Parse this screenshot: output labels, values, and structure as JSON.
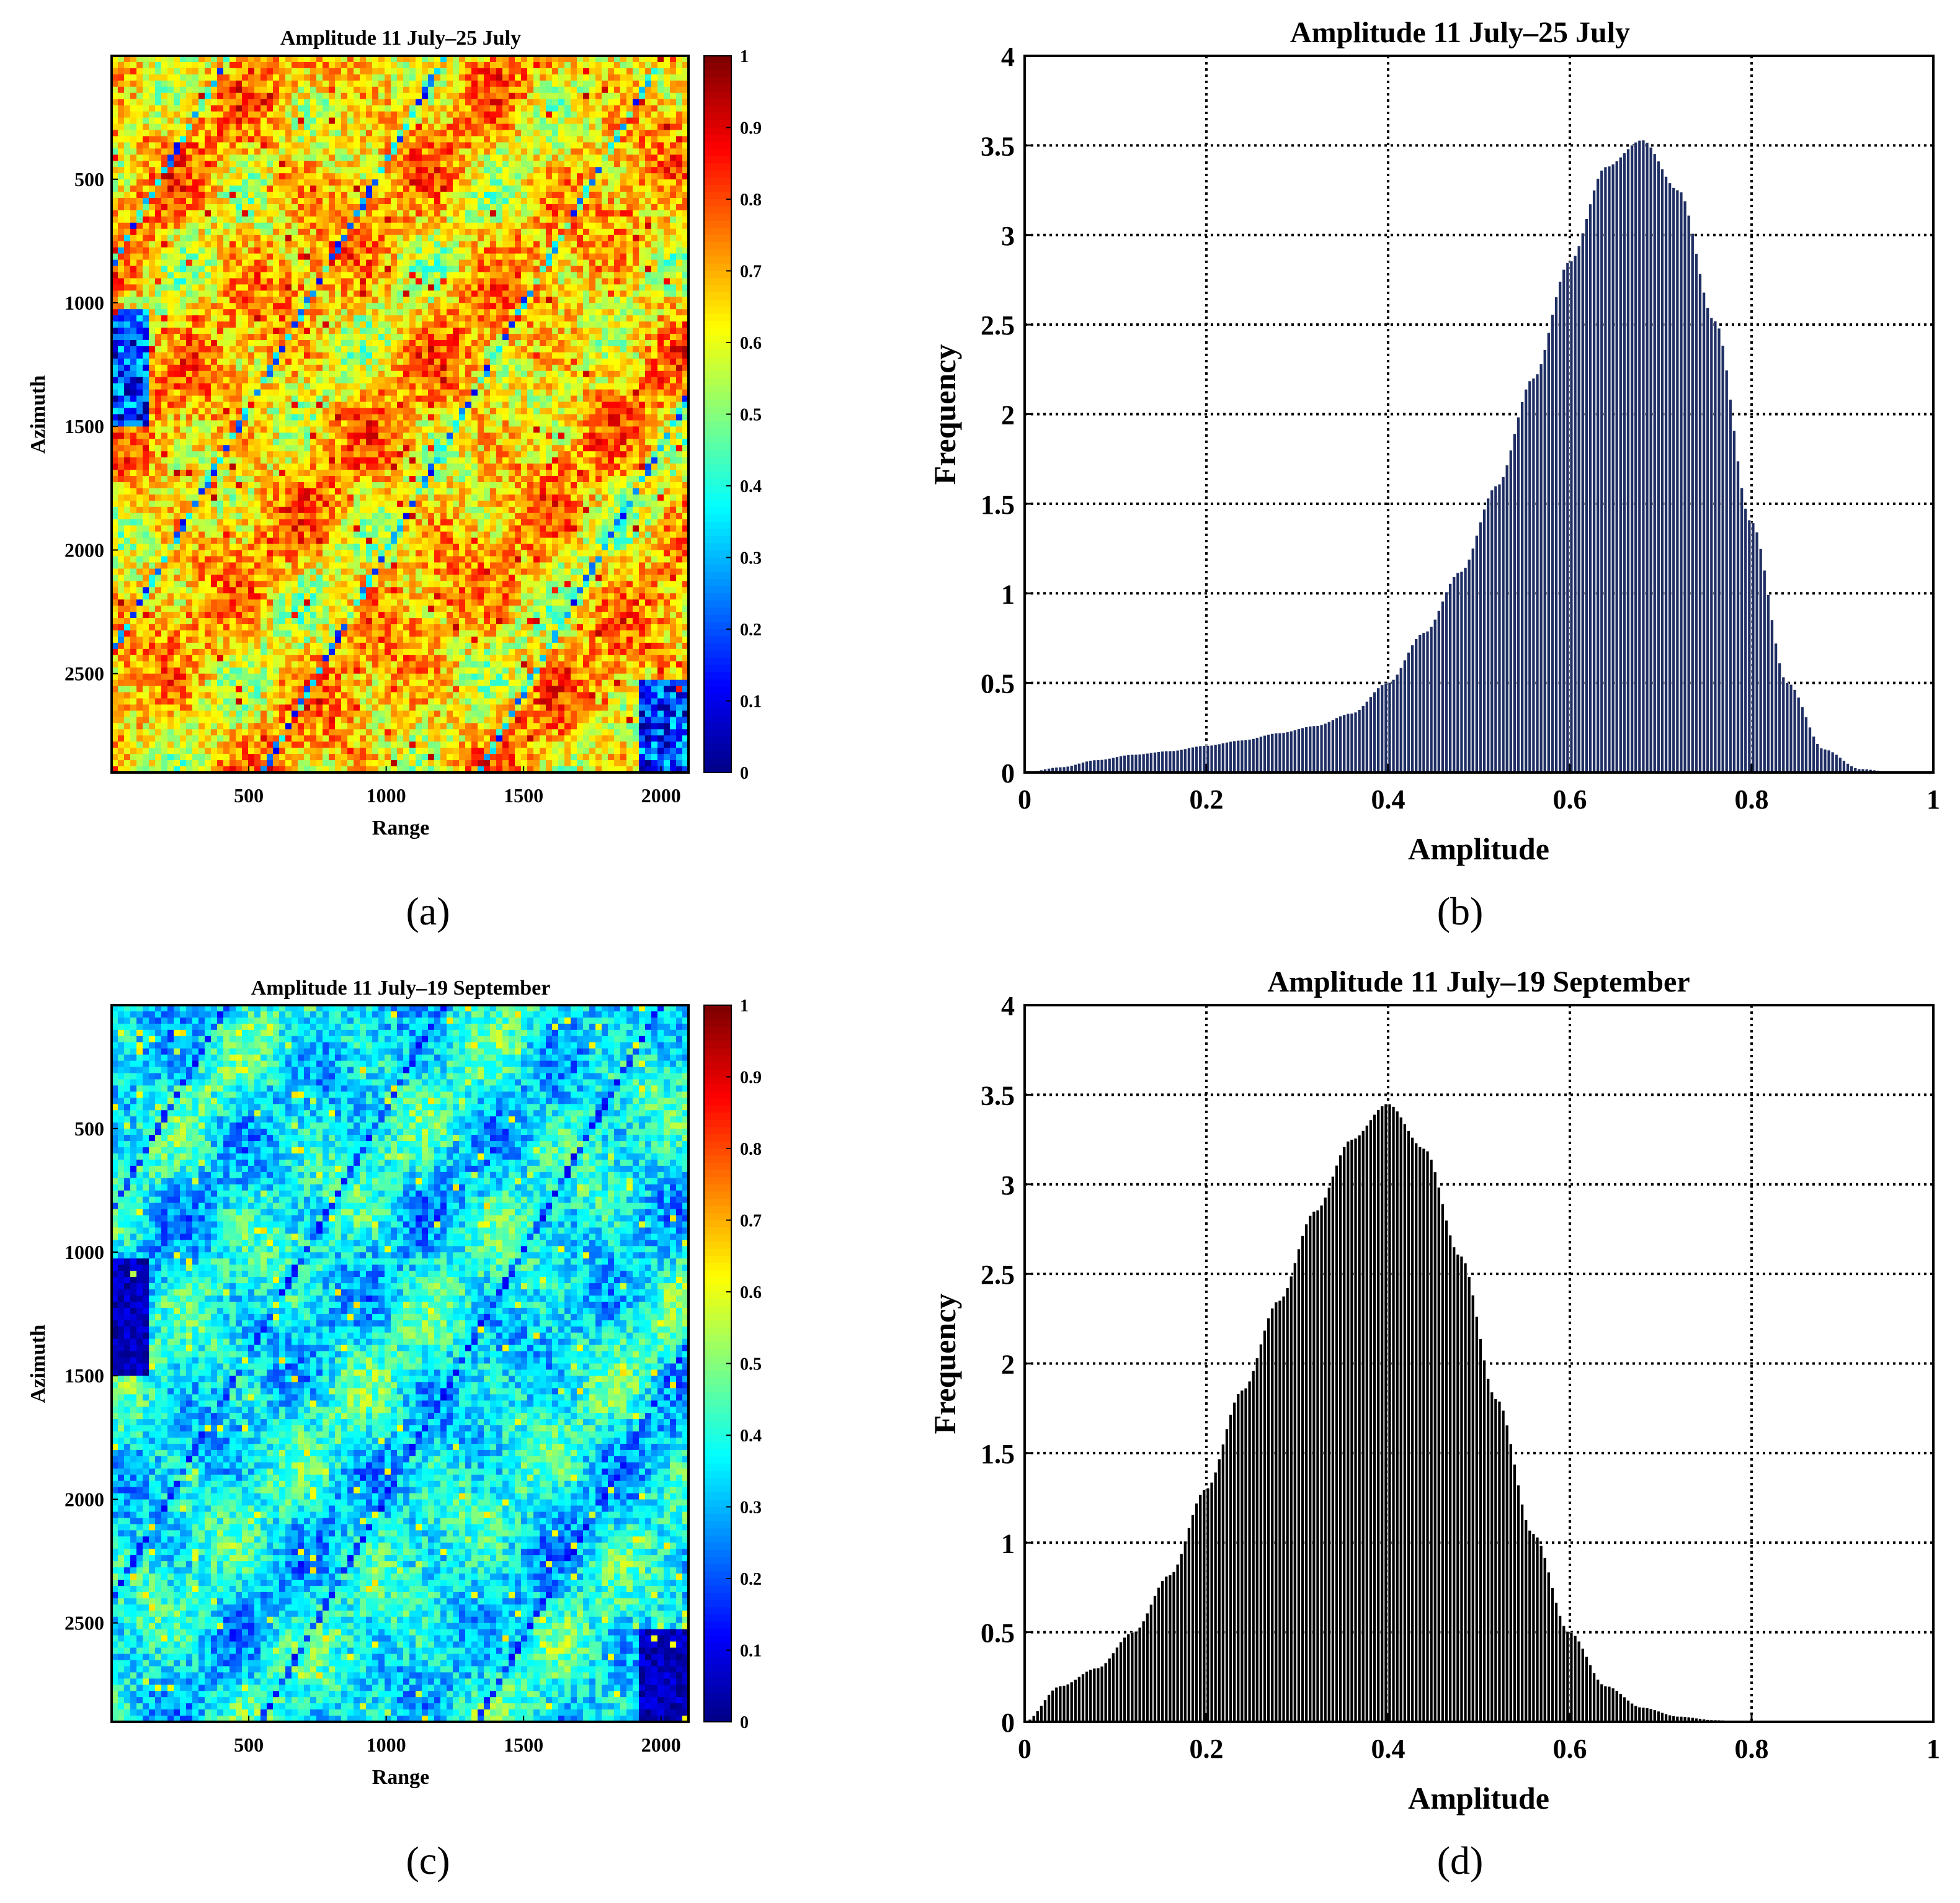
{
  "chart_data": [
    {
      "id": "a",
      "type": "heatmap",
      "panel_label": "(a)",
      "title": "Amplitude 11 July–25 July",
      "xlabel": "Range",
      "ylabel": "Azimuth",
      "xlim": [
        1,
        2100
      ],
      "ylim": [
        1,
        2900
      ],
      "xticks": [
        500,
        1000,
        1500,
        2000
      ],
      "yticks": [
        500,
        1000,
        1500,
        2000,
        2500
      ],
      "colorbar": {
        "colormap": "jet",
        "min": 0,
        "max": 1,
        "ticks": [
          "0",
          "0.1",
          "0.2",
          "0.3",
          "0.4",
          "0.5",
          "0.6",
          "0.7",
          "0.8",
          "0.9",
          "1"
        ]
      },
      "field": {
        "mean": 0.67,
        "spread": 0.17,
        "seed": 11,
        "low_patch": [
          0.0,
          0.38
        ],
        "high_patch": [
          0.82,
          0.95
        ]
      }
    },
    {
      "id": "b",
      "type": "bar",
      "panel_label": "(b)",
      "title": "Amplitude 11 July–25 July",
      "xlabel": "Amplitude",
      "ylabel": "Frequency",
      "xlim": [
        0,
        1
      ],
      "ylim": [
        0,
        4
      ],
      "grid": true,
      "xticks": [
        "0",
        "0.2",
        "0.4",
        "0.6",
        "0.8",
        "1"
      ],
      "yticks": [
        "0",
        "0.5",
        "1",
        "1.5",
        "2",
        "2.5",
        "3",
        "3.5",
        "4"
      ],
      "bar_fill": "#1f2e63",
      "bin_centers": [
        0.0,
        0.04,
        0.08,
        0.12,
        0.16,
        0.2,
        0.24,
        0.28,
        0.32,
        0.36,
        0.4,
        0.44,
        0.48,
        0.52,
        0.56,
        0.6,
        0.64,
        0.68,
        0.72,
        0.76,
        0.8,
        0.84,
        0.88,
        0.92,
        0.96,
        1.0
      ],
      "values": [
        0.0,
        0.03,
        0.07,
        0.1,
        0.12,
        0.15,
        0.18,
        0.22,
        0.26,
        0.33,
        0.5,
        0.78,
        1.12,
        1.6,
        2.2,
        2.85,
        3.38,
        3.53,
        3.25,
        2.52,
        1.4,
        0.5,
        0.13,
        0.02,
        0.0,
        0.0
      ]
    },
    {
      "id": "c",
      "type": "heatmap",
      "panel_label": "(c)",
      "title": "Amplitude 11 July–19 September",
      "xlabel": "Range",
      "ylabel": "Azimuth",
      "xlim": [
        1,
        2100
      ],
      "ylim": [
        1,
        2900
      ],
      "xticks": [
        500,
        1000,
        1500,
        2000
      ],
      "yticks": [
        500,
        1000,
        1500,
        2000,
        2500
      ],
      "colorbar": {
        "colormap": "jet",
        "min": 0,
        "max": 1,
        "ticks": [
          "0",
          "0.1",
          "0.2",
          "0.3",
          "0.4",
          "0.5",
          "0.6",
          "0.7",
          "0.8",
          "0.9",
          "1"
        ]
      },
      "field": {
        "mean": 0.37,
        "spread": 0.14,
        "seed": 23,
        "low_patch": [
          0.0,
          0.12
        ],
        "high_patch": [
          0.55,
          0.66
        ]
      }
    },
    {
      "id": "d",
      "type": "bar",
      "panel_label": "(d)",
      "title": "Amplitude 11 July–19 September",
      "xlabel": "Amplitude",
      "ylabel": "Frequency",
      "xlim": [
        0,
        1
      ],
      "ylim": [
        0,
        4
      ],
      "grid": true,
      "xticks": [
        "0",
        "0.2",
        "0.4",
        "0.6",
        "0.8",
        "1"
      ],
      "yticks": [
        "0",
        "0.5",
        "1",
        "1.5",
        "2",
        "2.5",
        "3",
        "3.5",
        "4"
      ],
      "bar_fill": "#000000",
      "bin_centers": [
        0.0,
        0.04,
        0.08,
        0.12,
        0.16,
        0.2,
        0.24,
        0.28,
        0.32,
        0.36,
        0.4,
        0.44,
        0.48,
        0.52,
        0.56,
        0.6,
        0.64,
        0.68,
        0.72,
        0.76,
        0.8,
        0.84,
        0.88,
        0.92,
        0.96,
        1.0
      ],
      "values": [
        0.0,
        0.2,
        0.3,
        0.5,
        0.82,
        1.3,
        1.85,
        2.35,
        2.85,
        3.25,
        3.45,
        3.2,
        2.6,
        1.8,
        1.05,
        0.5,
        0.2,
        0.08,
        0.03,
        0.01,
        0.0,
        0.0,
        0.0,
        0.0,
        0.0,
        0.0
      ]
    }
  ]
}
